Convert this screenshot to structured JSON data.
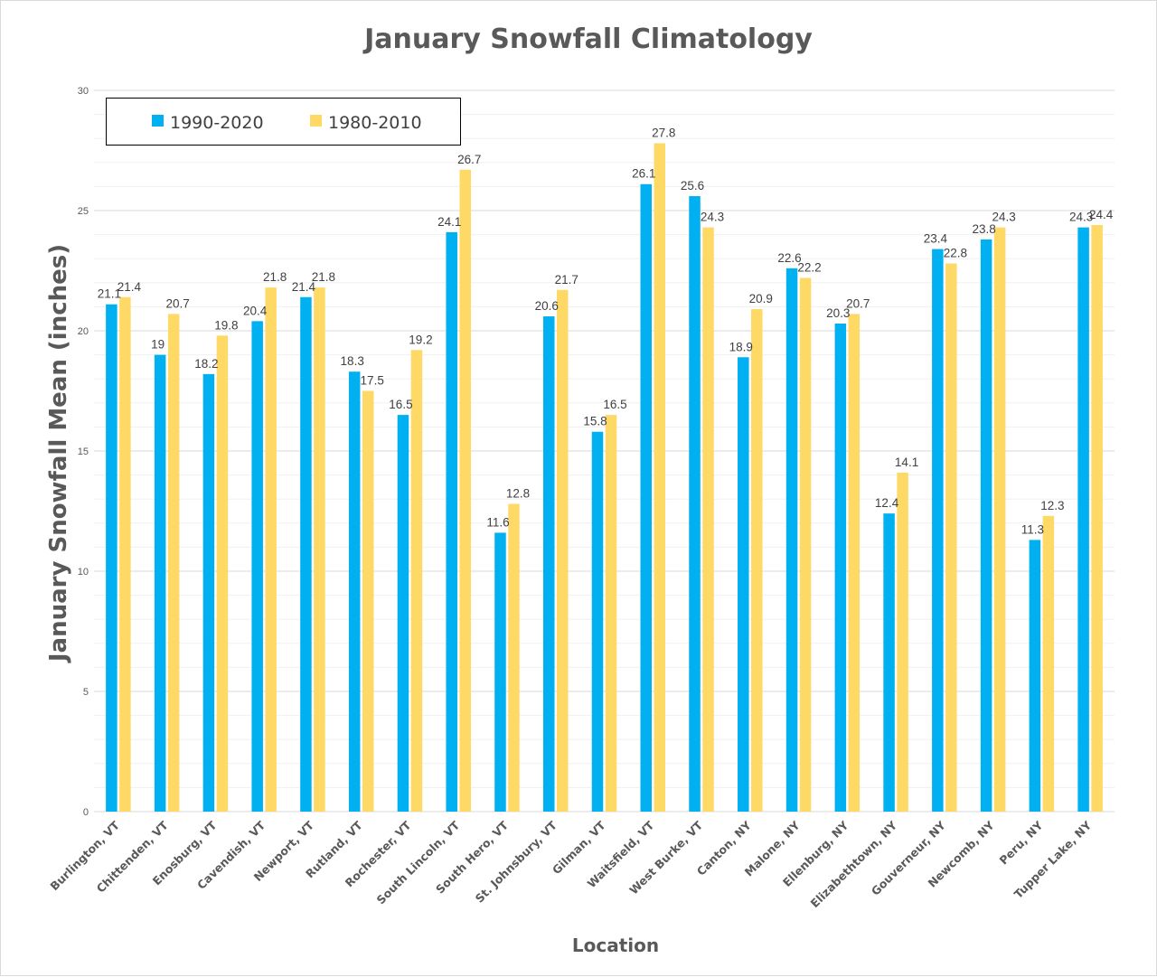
{
  "chart_data": {
    "type": "bar",
    "title": "January Snowfall Climatology",
    "xlabel": "Location",
    "ylabel": "January Snowfall Mean (inches)",
    "ylim": [
      0,
      30
    ],
    "yticks": [
      0,
      5,
      10,
      15,
      20,
      25,
      30
    ],
    "grid": true,
    "legend_position": "top-left",
    "categories": [
      "Burlington, VT",
      "Chittenden, VT",
      "Enosburg, VT",
      "Cavendish, VT",
      "Newport, VT",
      "Rutland, VT",
      "Rochester, VT",
      "South Lincoln, VT",
      "South Hero, VT",
      "St. Johnsbury, VT",
      "Gilman, VT",
      "Waitsfield, VT",
      "West Burke, VT",
      "Canton, NY",
      "Malone, NY",
      "Ellenburg, NY",
      "Elizabethtown, NY",
      "Gouverneur, NY",
      "Newcomb, NY",
      "Peru, NY",
      "Tupper Lake, NY"
    ],
    "series": [
      {
        "name": "1990-2020",
        "color": "#00b0f0",
        "values": [
          21.1,
          19,
          18.2,
          20.4,
          21.4,
          18.3,
          16.5,
          24.1,
          11.6,
          20.6,
          15.8,
          26.1,
          25.6,
          18.9,
          22.6,
          20.3,
          12.4,
          23.4,
          23.8,
          11.3,
          24.3
        ]
      },
      {
        "name": "1980-2010",
        "color": "#ffd966",
        "values": [
          21.4,
          20.7,
          19.8,
          21.8,
          21.8,
          17.5,
          19.2,
          26.7,
          12.8,
          21.7,
          16.5,
          27.8,
          24.3,
          20.9,
          22.2,
          20.7,
          14.1,
          22.8,
          24.3,
          12.3,
          24.4
        ]
      }
    ]
  }
}
